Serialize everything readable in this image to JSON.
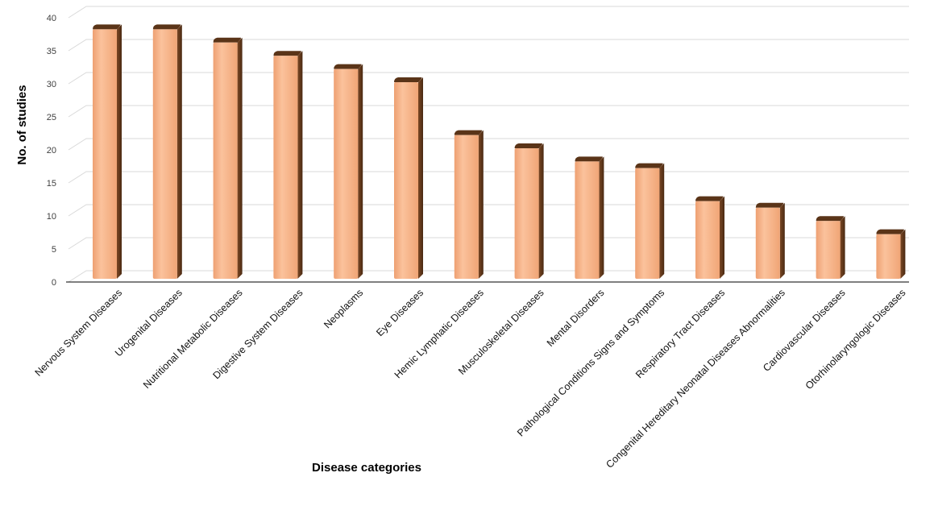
{
  "chart_data": {
    "type": "bar",
    "title": "",
    "xlabel": "Disease categories",
    "ylabel": "No. of studies",
    "ylim": [
      0,
      40
    ],
    "yticks": [
      0,
      5,
      10,
      15,
      20,
      25,
      30,
      35,
      40
    ],
    "grid": true,
    "legend": "none",
    "categories": [
      "Nervous System Diseases",
      "Urogenital Diseases",
      "Nutritional Metabolic Diseases",
      "Digestive System Diseases",
      "Neoplasms",
      "Eye Diseases",
      "Hemic Lymphatic Diseases",
      "Musculoskeletal Diseases",
      "Mental Disorders",
      "Pathological Conditions Signs and Symptoms",
      "Respiratory Tract Diseases",
      "Congenital Hereditary Neonatal Diseases Abnormalities",
      "Cardiovascular Diseases",
      "Otorhinolaryngologic Diseases"
    ],
    "values": [
      38,
      38,
      36,
      34,
      32,
      30,
      22,
      20,
      18,
      17,
      12,
      11,
      9,
      7
    ],
    "colors": {
      "bar": "#f7b286",
      "bar_side": "#6b3f1f",
      "bar_top": "#5a3418",
      "grid": "#d9d9d9",
      "axis": "#000000"
    }
  }
}
